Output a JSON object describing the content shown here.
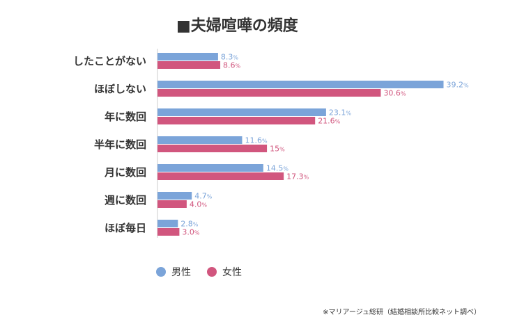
{
  "chart_data": {
    "type": "bar",
    "orientation": "horizontal",
    "title": "■夫婦喧嘩の頻度",
    "categories": [
      "したことがない",
      "ほぼしない",
      "年に数回",
      "半年に数回",
      "月に数回",
      "週に数回",
      "ほぼ毎日"
    ],
    "series": [
      {
        "name": "男性",
        "color": "#7ba4d9",
        "values": [
          8.3,
          39.2,
          23.1,
          11.6,
          14.5,
          4.7,
          2.8
        ],
        "labels": [
          "8.3",
          "39.2",
          "23.1",
          "11.6",
          "14.5",
          "4.7",
          "2.8"
        ]
      },
      {
        "name": "女性",
        "color": "#d1567e",
        "values": [
          8.6,
          30.6,
          21.6,
          15,
          17.3,
          4.0,
          3.0
        ],
        "labels": [
          "8.6",
          "30.6",
          "21.6",
          "15",
          "17.3",
          "4.0",
          "3.0"
        ]
      }
    ],
    "unit": "%",
    "xlim": [
      0,
      40
    ],
    "grid": false,
    "legend_position": "bottom-left",
    "source": "※マリアージュ総研（結婚相談所比較ネット調べ）"
  }
}
